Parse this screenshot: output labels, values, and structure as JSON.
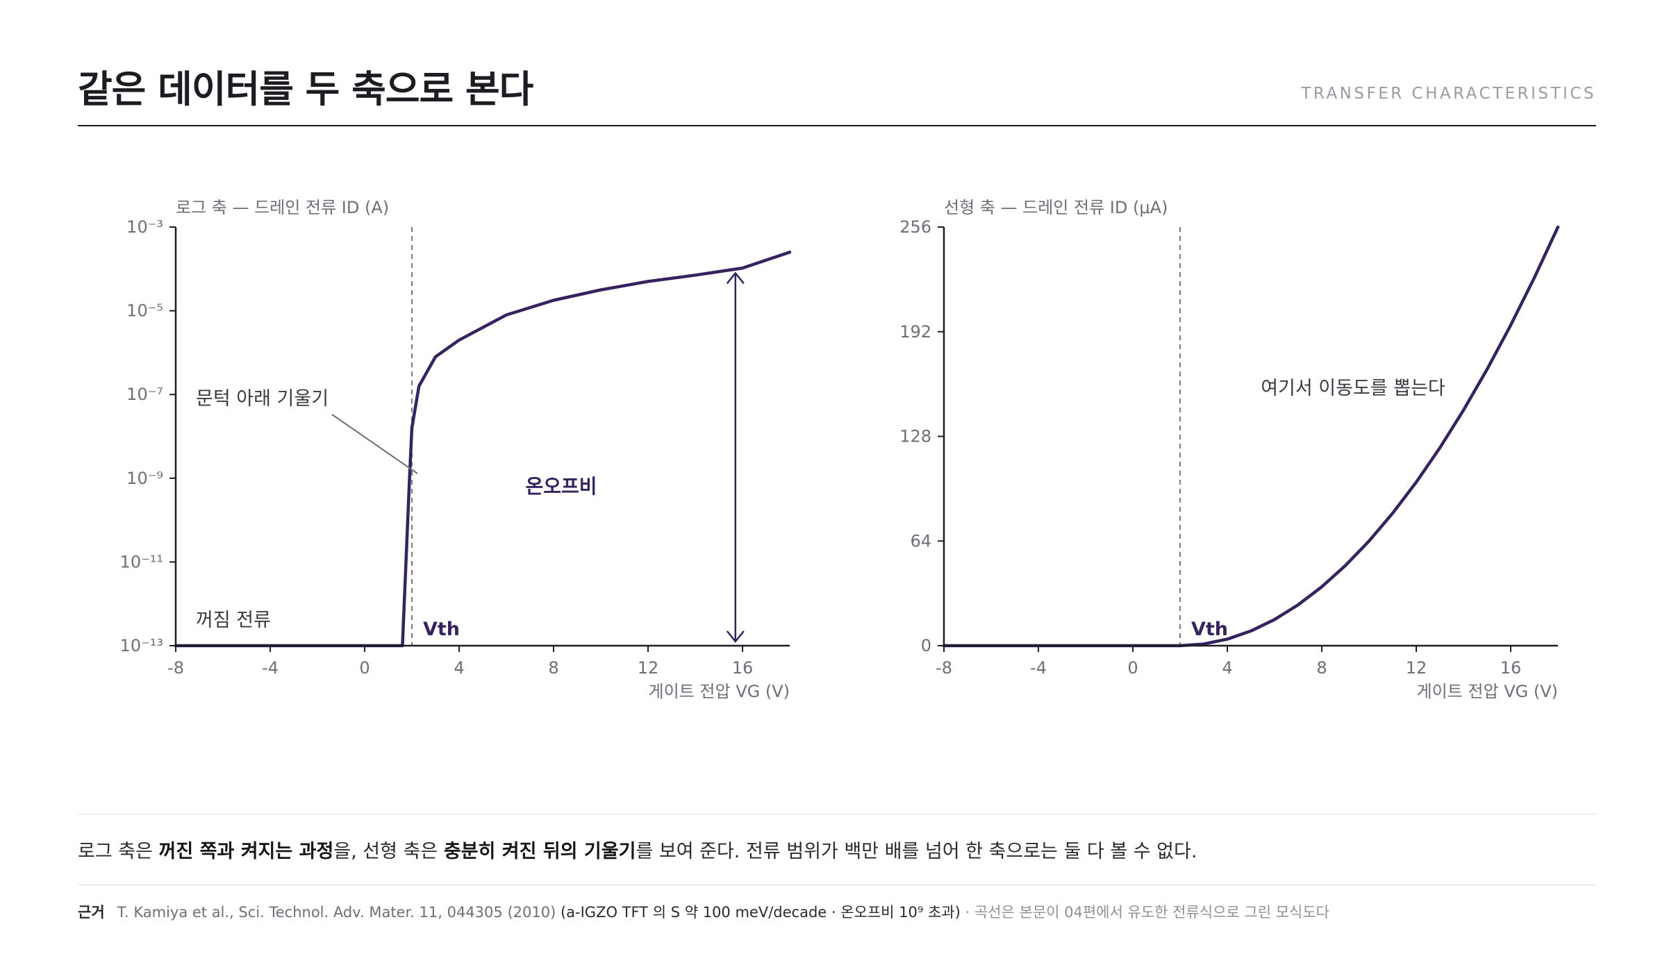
{
  "header": {
    "title": "같은 데이터를 두 축으로 본다",
    "eyebrow": "TRANSFER CHARACTERISTICS"
  },
  "chart_data": [
    {
      "type": "line",
      "scale": "log",
      "ylabel": "로그 축 — 드레인 전류 ID (A)",
      "xlabel": "게이트 전압 VG (V)",
      "xlim": [
        -8,
        18
      ],
      "ylim_exp": [
        -13,
        -3
      ],
      "x_ticks": [
        -8,
        -4,
        0,
        4,
        8,
        12,
        16
      ],
      "y_tick_exponents": [
        -3,
        -5,
        -7,
        -9,
        -11,
        -13
      ],
      "vth": 2,
      "series": [
        {
          "x": [
            -8,
            1.6,
            1.9,
            2.0,
            2.3,
            3.0,
            4.0,
            6.0,
            8.0,
            10.0,
            12.0,
            14.0,
            16.0,
            18.0
          ],
          "y_exp": [
            -13,
            -13,
            -9.0,
            -7.8,
            -6.8,
            -6.1,
            -5.7,
            -5.1,
            -4.75,
            -4.5,
            -4.3,
            -4.15,
            -3.98,
            -3.6
          ]
        }
      ],
      "onoff_arrow": {
        "x": 15.7,
        "y_exp": [
          -4.1,
          -13
        ]
      },
      "annotations": {
        "vth_label": "Vth",
        "subthreshold": "문턱 아래 기울기",
        "off_current": "꺼짐 전류",
        "on_off": "온오프비"
      }
    },
    {
      "type": "line",
      "scale": "linear",
      "ylabel": "선형 축 — 드레인 전류 ID (μA)",
      "xlabel": "게이트 전압 VG (V)",
      "xlim": [
        -8,
        18
      ],
      "ylim": [
        0,
        256
      ],
      "x_ticks": [
        -8,
        -4,
        0,
        4,
        8,
        12,
        16
      ],
      "y_ticks": [
        256,
        192,
        128,
        64,
        0
      ],
      "vth": 2,
      "series": [
        {
          "x": [
            -8,
            2,
            3,
            4,
            5,
            6,
            7,
            8,
            9,
            10,
            11,
            12,
            13,
            14,
            15,
            16,
            17,
            18
          ],
          "y": [
            0,
            0,
            1,
            4,
            9,
            16,
            25,
            36,
            49,
            64,
            81,
            100,
            121,
            144,
            169,
            196,
            225,
            256
          ]
        }
      ],
      "annotations": {
        "vth_label": "Vth",
        "mobility": "여기서 이동도를 뽑는다"
      }
    }
  ],
  "summary": {
    "p1": "로그 축은 ",
    "b1": "꺼진 쪽과 켜지는 과정",
    "p2": "을, 선형 축은 ",
    "b2": "충분히 켜진 뒤의 기울기",
    "p3": "를 보여 준다. 전류 범위가 백만 배를 넘어 한 축으로는 둘 다 볼 수 없다."
  },
  "source": {
    "label": "근거",
    "citation": "T. Kamiya et al., Sci. Technol. Adv. Mater. 11, 044305 (2010)",
    "detail": "(a-IGZO TFT 의 S 약 100 meV/decade · 온오프비 10⁹ 초과)",
    "note": "· 곡선은 본문이 04편에서 유도한 전류식으로 그린 모식도다"
  },
  "colors": {
    "curve": "#35225e",
    "axis": "#1c1c22",
    "tick": "#6e6e78",
    "guide": "#7a7a84"
  }
}
